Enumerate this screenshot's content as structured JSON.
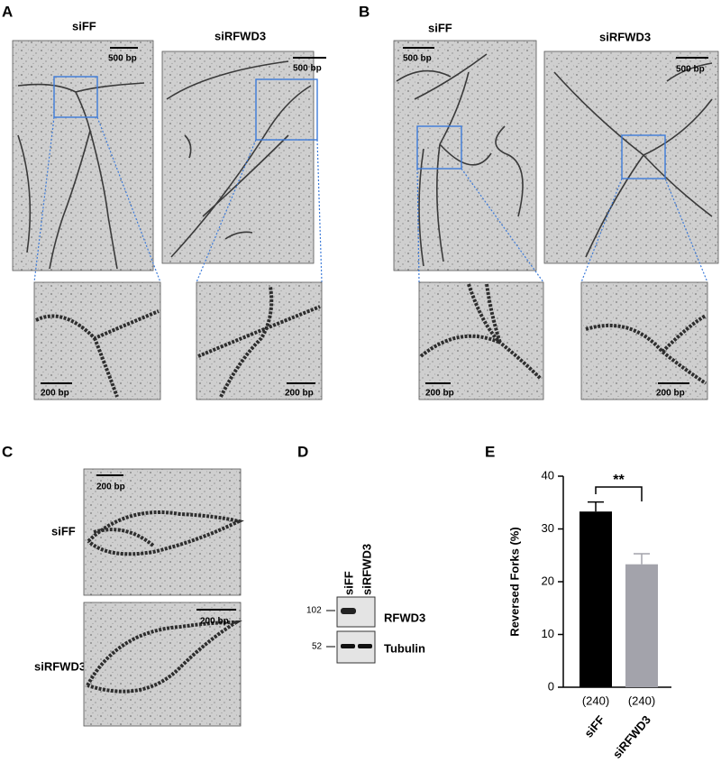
{
  "panel_a": {
    "label": "A",
    "conditions": [
      "siFF",
      "siRFWD3"
    ],
    "scale_bars": [
      "500 bp",
      "500 bp",
      "200 bp",
      "200 bp"
    ]
  },
  "panel_b": {
    "label": "B",
    "conditions": [
      "siFF",
      "siRFWD3"
    ],
    "scale_bars": [
      "500 bp",
      "500 bp",
      "200 bp",
      "200 bp"
    ]
  },
  "panel_c": {
    "label": "C",
    "conditions": [
      "siFF",
      "siRFWD3"
    ],
    "scale_bars": [
      "200 bp",
      "200 bp"
    ]
  },
  "panel_d": {
    "label": "D",
    "lanes": [
      "siFF",
      "siRFWD3"
    ],
    "markers": [
      102,
      52
    ],
    "bands": [
      "RFWD3",
      "Tubulin"
    ]
  },
  "panel_e": {
    "label": "E"
  },
  "chart_data": {
    "type": "bar",
    "y_label": "Reversed Forks (%)",
    "categories": [
      "siFF",
      "siRFWD3"
    ],
    "values": [
      33.3,
      23.3
    ],
    "errors": [
      1.8,
      2.0
    ],
    "colors": [
      "#000000",
      "#a3a3ab"
    ],
    "ylim": [
      0,
      40
    ],
    "yticks": [
      0,
      10,
      20,
      30,
      40
    ],
    "counts": [
      "(240)",
      "(240)"
    ],
    "significance": "**"
  }
}
